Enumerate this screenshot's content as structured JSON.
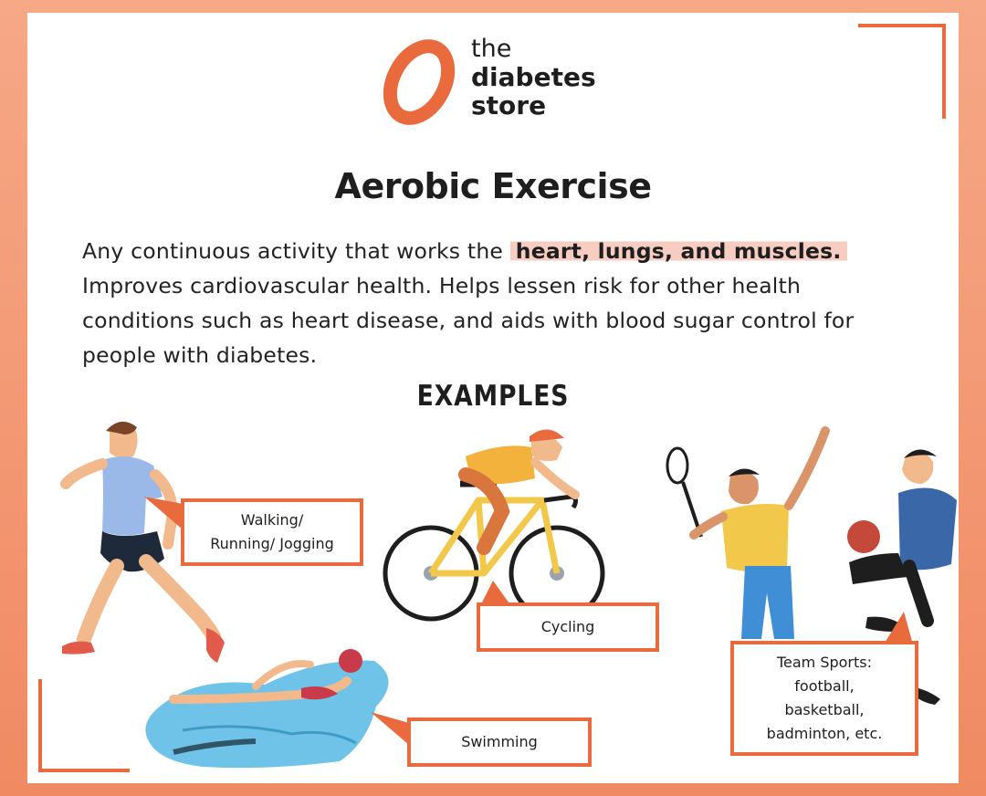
{
  "brand": {
    "line1": "the",
    "line2": "diabetes",
    "line3": "store",
    "accent_color": "#e86a3d"
  },
  "title": "Aerobic Exercise",
  "description": {
    "lead": "Any continuous activity that works the ",
    "highlight": "heart, lungs, and muscles.",
    "rest": " Improves cardiovascular health. Helps lessen risk for other health conditions such as heart disease, and aids with blood sugar control for people with diabetes."
  },
  "examples_heading": "EXAMPLES",
  "examples": {
    "walking": {
      "line1": "Walking/",
      "line2": "Running/ Jogging",
      "icon": "runner-icon"
    },
    "cycling": {
      "line1": "Cycling",
      "icon": "cyclist-icon"
    },
    "swimming": {
      "line1": "Swimming",
      "icon": "swimmer-icon"
    },
    "team_sports": {
      "line1": "Team Sports:",
      "line2": "football,",
      "line3": "basketball,",
      "line4": "badminton, etc.",
      "icon": "team-sports-icon"
    }
  }
}
